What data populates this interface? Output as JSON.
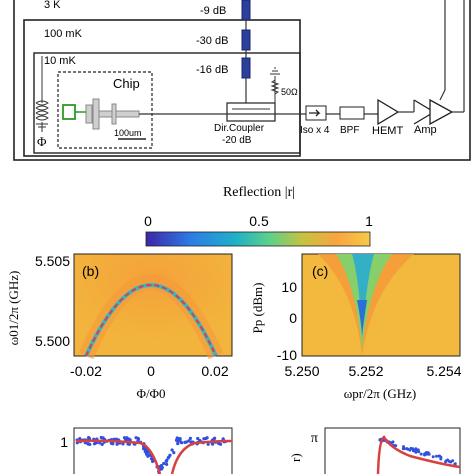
{
  "circuit": {
    "temp_3k": "3 K",
    "temp_100mk": "100 mK",
    "temp_10mk": "10 mK",
    "atten_1": "-9 dB",
    "atten_2": "-30 dB",
    "atten_3": "-16 dB",
    "resistor": "50Ω",
    "chip": "Chip",
    "scale": "100um",
    "flux_symbol": "Φ",
    "coupler_1": "Dir.Coupler",
    "coupler_2": "-20 dB",
    "isolator": "Iso x 4",
    "bpf": "BPF",
    "hemt": "HEMT",
    "amp": "Amp"
  },
  "colorbar": {
    "title": "Reflection |r|",
    "ticks": [
      "0",
      "0.5",
      "1"
    ],
    "stops": [
      "#3d26a8",
      "#2c7ce6",
      "#20b0c8",
      "#5cd08a",
      "#c6c240",
      "#f8a540",
      "#f7c948"
    ]
  },
  "panel_b": {
    "label": "(b)",
    "ylabel": "ω01/2π (GHz)",
    "xlabel": "Φ/Φ0",
    "yticks": [
      "5.505",
      "5.500"
    ],
    "xticks": [
      "-0.02",
      "0",
      "0.02"
    ]
  },
  "panel_c": {
    "label": "(c)",
    "ylabel": "Pp (dBm)",
    "xlabel": "ωpr/2π (GHz)",
    "yticks": [
      "10",
      "0",
      "-10"
    ],
    "xticks": [
      "5.250",
      "5.252",
      "5.254"
    ]
  },
  "panel_bottom_left": {
    "ytick": "1"
  },
  "panel_bottom_right": {
    "ytick": "π",
    "ylabel_fragment": "r)"
  },
  "colors": {
    "map_bg": "#f2b43c",
    "fit_line": "#d94040",
    "data_points": "#3050e0",
    "wire": "#333333"
  }
}
